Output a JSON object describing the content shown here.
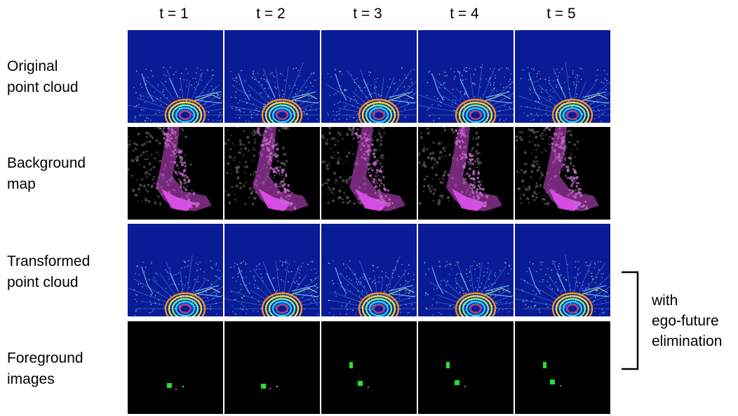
{
  "columns": [
    "t = 1",
    "t = 2",
    "t = 3",
    "t = 4",
    "t = 5"
  ],
  "rows": [
    {
      "line1": "Original",
      "line2": "point cloud",
      "kind": "lidar"
    },
    {
      "line1": "Background",
      "line2": "map",
      "kind": "map"
    },
    {
      "line1": "Transformed",
      "line2": "point cloud",
      "kind": "lidar"
    },
    {
      "line1": "Foreground",
      "line2": "images",
      "kind": "foreground"
    }
  ],
  "annotation": {
    "line1": "with",
    "line2": "ego-future",
    "line3": "elimination"
  },
  "colors": {
    "lidar_background": "#0a1b96",
    "map_background": "#000000",
    "map_magenta": "#d24bd8",
    "map_gray": "#6d6b6b",
    "foreground_green": "#22e03a",
    "foreground_magenta": "#e03ac8",
    "foreground_cyan": "#37d8e0"
  }
}
